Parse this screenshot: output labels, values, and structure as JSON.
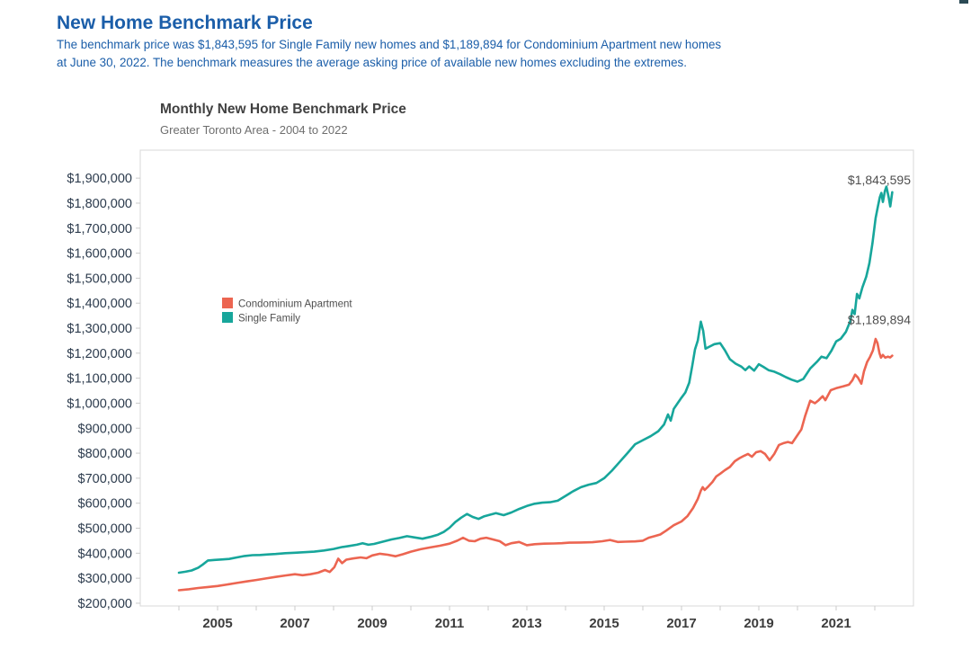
{
  "page": {
    "title": "New Home Benchmark Price",
    "subtitle_line1": "The benchmark price was $1,843,595 for Single Family new homes and $1,189,894 for Condominium Apartment new homes",
    "subtitle_line2": "at June 30, 2022. The benchmark measures the average asking price of available new homes excluding the extremes.",
    "accent_color": "#1b5ea9"
  },
  "chart_data": {
    "type": "line",
    "title": "Monthly New Home Benchmark Price",
    "subtitle": "Greater Toronto Area - 2004 to 2022",
    "grid": "off",
    "style": {
      "border": "#d8d8d8",
      "tick": "#cbcbcb"
    },
    "x_axis": {
      "min": 2003,
      "max": 2023,
      "tick_years": [
        2004,
        2005,
        2006,
        2007,
        2008,
        2009,
        2010,
        2011,
        2012,
        2013,
        2014,
        2015,
        2016,
        2017,
        2018,
        2019,
        2020,
        2021,
        2022
      ],
      "labeled_ticks": [
        {
          "year": 2005,
          "label": "2005"
        },
        {
          "year": 2007,
          "label": "2007"
        },
        {
          "year": 2009,
          "label": "2009"
        },
        {
          "year": 2011,
          "label": "2011"
        },
        {
          "year": 2013,
          "label": "2013"
        },
        {
          "year": 2015,
          "label": "2015"
        },
        {
          "year": 2017,
          "label": "2017"
        },
        {
          "year": 2019,
          "label": "2019"
        },
        {
          "year": 2021,
          "label": "2021"
        }
      ]
    },
    "y_axis": {
      "min": 189000,
      "max": 2012000,
      "ticks": [
        {
          "value": 200000,
          "label": "$200,000"
        },
        {
          "value": 300000,
          "label": "$300,000"
        },
        {
          "value": 400000,
          "label": "$400,000"
        },
        {
          "value": 500000,
          "label": "$500,000"
        },
        {
          "value": 600000,
          "label": "$600,000"
        },
        {
          "value": 700000,
          "label": "$700,000"
        },
        {
          "value": 800000,
          "label": "$800,000"
        },
        {
          "value": 900000,
          "label": "$900,000"
        },
        {
          "value": 1000000,
          "label": "$1,000,000"
        },
        {
          "value": 1100000,
          "label": "$1,100,000"
        },
        {
          "value": 1200000,
          "label": "$1,200,000"
        },
        {
          "value": 1300000,
          "label": "$1,300,000"
        },
        {
          "value": 1400000,
          "label": "$1,400,000"
        },
        {
          "value": 1500000,
          "label": "$1,500,000"
        },
        {
          "value": 1600000,
          "label": "$1,600,000"
        },
        {
          "value": 1700000,
          "label": "$1,700,000"
        },
        {
          "value": 1800000,
          "label": "$1,800,000"
        },
        {
          "value": 1900000,
          "label": "$1,900,000"
        }
      ]
    },
    "legend": {
      "position": "inside-upper-left",
      "items": [
        {
          "name": "Condominium Apartment",
          "color": "#ec6551"
        },
        {
          "name": "Single Family",
          "color": "#17a69b"
        }
      ]
    },
    "annotations": [
      {
        "text": "$1,843,595",
        "series": "Single Family",
        "anchor_value": 1890000
      },
      {
        "text": "$1,189,894",
        "series": "Condominium Apartment",
        "anchor_value": 1330000
      }
    ],
    "series": [
      {
        "name": "Condominium Apartment",
        "color": "#ec6551",
        "points": [
          [
            2004.0,
            252000
          ],
          [
            2004.25,
            256000
          ],
          [
            2004.5,
            261000
          ],
          [
            2004.75,
            265000
          ],
          [
            2005.0,
            269000
          ],
          [
            2005.25,
            275000
          ],
          [
            2005.5,
            281000
          ],
          [
            2005.75,
            287000
          ],
          [
            2006.0,
            293000
          ],
          [
            2006.25,
            299000
          ],
          [
            2006.5,
            305000
          ],
          [
            2006.75,
            311000
          ],
          [
            2007.0,
            316000
          ],
          [
            2007.2,
            312000
          ],
          [
            2007.4,
            316000
          ],
          [
            2007.6,
            322000
          ],
          [
            2007.78,
            333000
          ],
          [
            2007.9,
            325000
          ],
          [
            2008.02,
            344000
          ],
          [
            2008.12,
            378000
          ],
          [
            2008.22,
            360000
          ],
          [
            2008.33,
            374000
          ],
          [
            2008.5,
            379000
          ],
          [
            2008.7,
            383000
          ],
          [
            2008.85,
            380000
          ],
          [
            2009.0,
            391000
          ],
          [
            2009.2,
            398000
          ],
          [
            2009.4,
            394000
          ],
          [
            2009.6,
            388000
          ],
          [
            2009.8,
            396000
          ],
          [
            2010.0,
            406000
          ],
          [
            2010.25,
            416000
          ],
          [
            2010.5,
            423000
          ],
          [
            2010.75,
            430000
          ],
          [
            2011.0,
            438000
          ],
          [
            2011.2,
            450000
          ],
          [
            2011.35,
            462000
          ],
          [
            2011.5,
            450000
          ],
          [
            2011.65,
            448000
          ],
          [
            2011.8,
            458000
          ],
          [
            2011.95,
            462000
          ],
          [
            2012.1,
            456000
          ],
          [
            2012.3,
            448000
          ],
          [
            2012.45,
            432000
          ],
          [
            2012.6,
            440000
          ],
          [
            2012.8,
            445000
          ],
          [
            2013.0,
            432000
          ],
          [
            2013.2,
            436000
          ],
          [
            2013.45,
            438000
          ],
          [
            2013.7,
            439000
          ],
          [
            2013.9,
            440000
          ],
          [
            2014.1,
            442000
          ],
          [
            2014.4,
            443000
          ],
          [
            2014.7,
            444000
          ],
          [
            2014.95,
            448000
          ],
          [
            2015.15,
            453000
          ],
          [
            2015.35,
            445000
          ],
          [
            2015.55,
            446000
          ],
          [
            2015.8,
            447000
          ],
          [
            2016.0,
            450000
          ],
          [
            2016.15,
            462000
          ],
          [
            2016.3,
            468000
          ],
          [
            2016.45,
            475000
          ],
          [
            2016.6,
            490000
          ],
          [
            2016.8,
            512000
          ],
          [
            2017.0,
            527000
          ],
          [
            2017.15,
            548000
          ],
          [
            2017.3,
            581000
          ],
          [
            2017.42,
            617000
          ],
          [
            2017.5,
            650000
          ],
          [
            2017.55,
            664000
          ],
          [
            2017.6,
            653000
          ],
          [
            2017.7,
            668000
          ],
          [
            2017.8,
            685000
          ],
          [
            2017.9,
            707000
          ],
          [
            2018.0,
            718000
          ],
          [
            2018.12,
            732000
          ],
          [
            2018.25,
            745000
          ],
          [
            2018.38,
            768000
          ],
          [
            2018.5,
            780000
          ],
          [
            2018.62,
            790000
          ],
          [
            2018.72,
            797000
          ],
          [
            2018.82,
            786000
          ],
          [
            2018.93,
            804000
          ],
          [
            2019.05,
            808000
          ],
          [
            2019.16,
            797000
          ],
          [
            2019.28,
            772000
          ],
          [
            2019.4,
            797000
          ],
          [
            2019.52,
            833000
          ],
          [
            2019.65,
            841000
          ],
          [
            2019.75,
            845000
          ],
          [
            2019.86,
            840000
          ],
          [
            2020.0,
            872000
          ],
          [
            2020.1,
            895000
          ],
          [
            2020.2,
            950000
          ],
          [
            2020.33,
            1010000
          ],
          [
            2020.45,
            1000000
          ],
          [
            2020.55,
            1012000
          ],
          [
            2020.65,
            1028000
          ],
          [
            2020.72,
            1012000
          ],
          [
            2020.86,
            1052000
          ],
          [
            2021.0,
            1060000
          ],
          [
            2021.18,
            1067000
          ],
          [
            2021.33,
            1074000
          ],
          [
            2021.42,
            1092000
          ],
          [
            2021.49,
            1114000
          ],
          [
            2021.56,
            1103000
          ],
          [
            2021.65,
            1078000
          ],
          [
            2021.72,
            1128000
          ],
          [
            2021.8,
            1164000
          ],
          [
            2021.88,
            1186000
          ],
          [
            2021.95,
            1211000
          ],
          [
            2022.02,
            1257000
          ],
          [
            2022.07,
            1240000
          ],
          [
            2022.12,
            1200000
          ],
          [
            2022.16,
            1182000
          ],
          [
            2022.21,
            1193000
          ],
          [
            2022.27,
            1182000
          ],
          [
            2022.34,
            1186000
          ],
          [
            2022.4,
            1183000
          ],
          [
            2022.45,
            1189894
          ]
        ]
      },
      {
        "name": "Single Family",
        "color": "#17a69b",
        "points": [
          [
            2004.0,
            322000
          ],
          [
            2004.17,
            326000
          ],
          [
            2004.33,
            331000
          ],
          [
            2004.5,
            342000
          ],
          [
            2004.62,
            355000
          ],
          [
            2004.75,
            371000
          ],
          [
            2004.92,
            373000
          ],
          [
            2005.1,
            375000
          ],
          [
            2005.3,
            377000
          ],
          [
            2005.5,
            383000
          ],
          [
            2005.7,
            389000
          ],
          [
            2005.9,
            392000
          ],
          [
            2006.1,
            393000
          ],
          [
            2006.3,
            395000
          ],
          [
            2006.5,
            397000
          ],
          [
            2006.75,
            400000
          ],
          [
            2007.0,
            402000
          ],
          [
            2007.25,
            404000
          ],
          [
            2007.5,
            406000
          ],
          [
            2007.75,
            411000
          ],
          [
            2008.0,
            417000
          ],
          [
            2008.2,
            424000
          ],
          [
            2008.4,
            429000
          ],
          [
            2008.6,
            434000
          ],
          [
            2008.75,
            440000
          ],
          [
            2008.9,
            434000
          ],
          [
            2009.05,
            437000
          ],
          [
            2009.25,
            445000
          ],
          [
            2009.5,
            455000
          ],
          [
            2009.7,
            461000
          ],
          [
            2009.9,
            468000
          ],
          [
            2010.1,
            463000
          ],
          [
            2010.3,
            458000
          ],
          [
            2010.5,
            465000
          ],
          [
            2010.7,
            474000
          ],
          [
            2010.85,
            485000
          ],
          [
            2011.0,
            502000
          ],
          [
            2011.15,
            525000
          ],
          [
            2011.3,
            542000
          ],
          [
            2011.45,
            557000
          ],
          [
            2011.6,
            545000
          ],
          [
            2011.75,
            537000
          ],
          [
            2011.9,
            548000
          ],
          [
            2012.05,
            554000
          ],
          [
            2012.2,
            560000
          ],
          [
            2012.4,
            552000
          ],
          [
            2012.6,
            563000
          ],
          [
            2012.8,
            577000
          ],
          [
            2013.0,
            589000
          ],
          [
            2013.2,
            598000
          ],
          [
            2013.4,
            602000
          ],
          [
            2013.6,
            604000
          ],
          [
            2013.8,
            610000
          ],
          [
            2014.0,
            629000
          ],
          [
            2014.2,
            648000
          ],
          [
            2014.4,
            664000
          ],
          [
            2014.6,
            674000
          ],
          [
            2014.8,
            681000
          ],
          [
            2015.0,
            700000
          ],
          [
            2015.2,
            730000
          ],
          [
            2015.4,
            765000
          ],
          [
            2015.6,
            800000
          ],
          [
            2015.8,
            836000
          ],
          [
            2016.0,
            852000
          ],
          [
            2016.2,
            868000
          ],
          [
            2016.4,
            888000
          ],
          [
            2016.55,
            915000
          ],
          [
            2016.65,
            955000
          ],
          [
            2016.72,
            930000
          ],
          [
            2016.8,
            977000
          ],
          [
            2016.9,
            1000000
          ],
          [
            2017.0,
            1022000
          ],
          [
            2017.1,
            1043000
          ],
          [
            2017.2,
            1082000
          ],
          [
            2017.28,
            1150000
          ],
          [
            2017.35,
            1215000
          ],
          [
            2017.42,
            1250000
          ],
          [
            2017.5,
            1326000
          ],
          [
            2017.56,
            1290000
          ],
          [
            2017.62,
            1218000
          ],
          [
            2017.72,
            1226000
          ],
          [
            2017.85,
            1236000
          ],
          [
            2018.0,
            1240000
          ],
          [
            2018.12,
            1212000
          ],
          [
            2018.25,
            1176000
          ],
          [
            2018.4,
            1158000
          ],
          [
            2018.55,
            1146000
          ],
          [
            2018.65,
            1132000
          ],
          [
            2018.75,
            1147000
          ],
          [
            2018.88,
            1130000
          ],
          [
            2019.0,
            1156000
          ],
          [
            2019.12,
            1145000
          ],
          [
            2019.25,
            1132000
          ],
          [
            2019.4,
            1126000
          ],
          [
            2019.55,
            1116000
          ],
          [
            2019.7,
            1104000
          ],
          [
            2019.85,
            1094000
          ],
          [
            2020.0,
            1086000
          ],
          [
            2020.15,
            1097000
          ],
          [
            2020.33,
            1139000
          ],
          [
            2020.5,
            1165000
          ],
          [
            2020.62,
            1186000
          ],
          [
            2020.75,
            1180000
          ],
          [
            2020.88,
            1210000
          ],
          [
            2021.0,
            1247000
          ],
          [
            2021.12,
            1258000
          ],
          [
            2021.25,
            1285000
          ],
          [
            2021.37,
            1330000
          ],
          [
            2021.42,
            1373000
          ],
          [
            2021.48,
            1356000
          ],
          [
            2021.54,
            1437000
          ],
          [
            2021.6,
            1419000
          ],
          [
            2021.68,
            1463000
          ],
          [
            2021.78,
            1506000
          ],
          [
            2021.86,
            1560000
          ],
          [
            2021.94,
            1640000
          ],
          [
            2022.02,
            1740000
          ],
          [
            2022.08,
            1786000
          ],
          [
            2022.13,
            1824000
          ],
          [
            2022.17,
            1841000
          ],
          [
            2022.21,
            1805000
          ],
          [
            2022.26,
            1848000
          ],
          [
            2022.3,
            1866000
          ],
          [
            2022.36,
            1822000
          ],
          [
            2022.4,
            1787000
          ],
          [
            2022.45,
            1843595
          ]
        ]
      }
    ]
  }
}
